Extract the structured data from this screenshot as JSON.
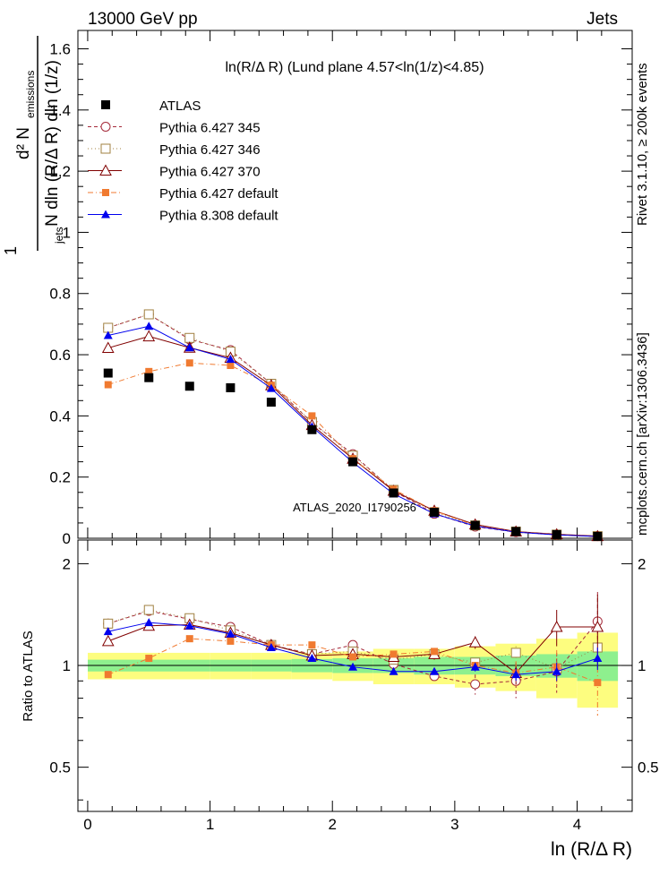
{
  "header": {
    "left": "13000 GeV pp",
    "right": "Jets"
  },
  "side_labels": {
    "rivet": "Rivet 3.1.10, ≥ 200k events",
    "mcplots": "mcplots.cern.ch [arXiv:1306.3436]"
  },
  "chart_data": {
    "type": "line",
    "title": "ln(R/Δ R) (Lund plane 4.57<ln(1/z)<4.85)",
    "watermark": "ATLAS_2020_I1790256",
    "xlabel": "ln (R/Δ R)",
    "ylabel_main": "1/N_jets dN_emissions / dln(R/ΔR) dln(1/z)",
    "ylabel_ratio": "Ratio to ATLAS",
    "xlim": [
      -0.08,
      4.45
    ],
    "ylim_main": [
      0,
      1.66
    ],
    "ylim_ratio": [
      0.37,
      2.35
    ],
    "x_ticks": [
      0,
      1,
      2,
      3,
      4
    ],
    "y_ticks_main": [
      0,
      0.2,
      0.4,
      0.6,
      0.8,
      1,
      1.2,
      1.4,
      1.6
    ],
    "y_ticks_ratio": [
      0.5,
      1,
      2
    ],
    "x": [
      0.167,
      0.5,
      0.833,
      1.167,
      1.5,
      1.833,
      2.167,
      2.5,
      2.833,
      3.167,
      3.5,
      3.833,
      4.167
    ],
    "data": {
      "name": "ATLAS",
      "values": [
        0.54,
        0.525,
        0.497,
        0.492,
        0.445,
        0.355,
        0.25,
        0.148,
        0.085,
        0.042,
        0.022,
        0.012,
        0.006
      ],
      "band_inner": [
        0.04,
        0.04,
        0.04,
        0.04,
        0.04,
        0.045,
        0.05,
        0.05,
        0.06,
        0.06,
        0.07,
        0.08,
        0.1
      ],
      "band_outer": [
        0.09,
        0.09,
        0.09,
        0.09,
        0.09,
        0.09,
        0.1,
        0.12,
        0.12,
        0.14,
        0.16,
        0.2,
        0.25
      ]
    },
    "series": [
      {
        "name": "Pythia 6.427 345",
        "color": "#a52a3a",
        "marker": "open-circle",
        "dash": "4,3",
        "values": [
          0.688,
          0.732,
          0.65,
          0.615,
          0.505,
          0.378,
          0.275,
          0.155,
          0.08,
          0.038,
          0.02,
          0.011,
          0.007
        ],
        "ratio": [
          1.33,
          1.45,
          1.37,
          1.3,
          1.15,
          1.08,
          1.15,
          1.01,
          0.93,
          0.88,
          0.9,
          0.96,
          1.35
        ],
        "ratio_err": [
          0,
          0,
          0,
          0,
          0,
          0,
          0,
          0,
          0,
          0.06,
          0.1,
          0.13,
          0.3
        ]
      },
      {
        "name": "Pythia 6.427 346",
        "color": "#a08040",
        "marker": "open-square",
        "dash": "1,3",
        "values": [
          0.688,
          0.732,
          0.655,
          0.61,
          0.505,
          0.38,
          0.27,
          0.158,
          0.085,
          0.042,
          0.022,
          0.012,
          0.007
        ],
        "ratio": [
          1.33,
          1.46,
          1.38,
          1.27,
          1.15,
          1.08,
          1.1,
          1.04,
          1.08,
          1.02,
          1.09,
          0.98,
          1.13
        ],
        "ratio_err": [
          0,
          0,
          0,
          0,
          0,
          0,
          0,
          0,
          0,
          0,
          0.05,
          0.07,
          0.12
        ]
      },
      {
        "name": "Pythia 6.427 370",
        "color": "#800000",
        "marker": "open-triangle",
        "dash": "",
        "values": [
          0.622,
          0.66,
          0.623,
          0.59,
          0.5,
          0.37,
          0.26,
          0.155,
          0.09,
          0.045,
          0.022,
          0.013,
          0.007
        ],
        "ratio": [
          1.18,
          1.31,
          1.32,
          1.25,
          1.15,
          1.07,
          1.08,
          1.06,
          1.08,
          1.17,
          0.95,
          1.3,
          1.3
        ],
        "ratio_err": [
          0,
          0,
          0,
          0,
          0,
          0,
          0,
          0.03,
          0.04,
          0.05,
          0.07,
          0.16,
          0.32
        ]
      },
      {
        "name": "Pythia 6.427 default",
        "color": "#f07a30",
        "marker": "filled-square",
        "dash": "6,3,1,3",
        "values": [
          0.502,
          0.545,
          0.573,
          0.565,
          0.5,
          0.4,
          0.26,
          0.16,
          0.09,
          0.042,
          0.021,
          0.012,
          0.005
        ],
        "ratio": [
          0.94,
          1.05,
          1.2,
          1.18,
          1.15,
          1.15,
          1.06,
          1.08,
          1.1,
          1.0,
          0.95,
          0.99,
          0.89
        ],
        "ratio_err": [
          0,
          0,
          0,
          0,
          0,
          0,
          0,
          0,
          0,
          0,
          0.08,
          0.12,
          0.18
        ]
      },
      {
        "name": "Pythia 8.308 default",
        "color": "#0000ee",
        "marker": "filled-triangle",
        "dash": "",
        "values": [
          0.663,
          0.693,
          0.623,
          0.585,
          0.49,
          0.365,
          0.248,
          0.145,
          0.08,
          0.04,
          0.02,
          0.011,
          0.006
        ],
        "ratio": [
          1.26,
          1.34,
          1.31,
          1.24,
          1.13,
          1.05,
          0.99,
          0.96,
          0.96,
          0.99,
          0.94,
          0.96,
          1.05
        ],
        "ratio_err": [
          0,
          0,
          0,
          0,
          0,
          0,
          0,
          0,
          0,
          0.03,
          0.04,
          0.06,
          0.08
        ]
      }
    ]
  }
}
